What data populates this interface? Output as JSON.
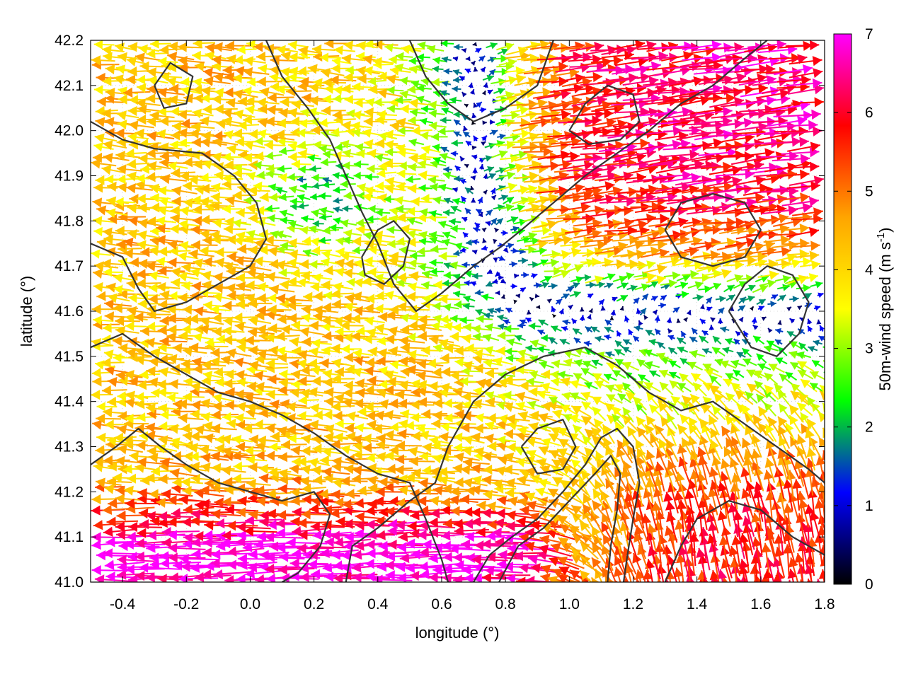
{
  "chart_data": {
    "type": "vector-field",
    "xlabel": "longitude (°)",
    "ylabel": "latitude (°)",
    "xlim": [
      -0.5,
      1.8
    ],
    "ylim": [
      41.0,
      42.2
    ],
    "xticks": [
      {
        "value": -0.4,
        "label": "-0.4"
      },
      {
        "value": -0.2,
        "label": "-0.2"
      },
      {
        "value": 0.0,
        "label": "0.0"
      },
      {
        "value": 0.2,
        "label": "0.2"
      },
      {
        "value": 0.4,
        "label": "0.4"
      },
      {
        "value": 0.6,
        "label": "0.6"
      },
      {
        "value": 0.8,
        "label": "0.8"
      },
      {
        "value": 1.0,
        "label": "1.0"
      },
      {
        "value": 1.2,
        "label": "1.2"
      },
      {
        "value": 1.4,
        "label": "1.4"
      },
      {
        "value": 1.6,
        "label": "1.6"
      },
      {
        "value": 1.8,
        "label": "1.8"
      }
    ],
    "yticks": [
      {
        "value": 41.0,
        "label": "41.0"
      },
      {
        "value": 41.1,
        "label": "41.1"
      },
      {
        "value": 41.2,
        "label": "41.2"
      },
      {
        "value": 41.3,
        "label": "41.3"
      },
      {
        "value": 41.4,
        "label": "41.4"
      },
      {
        "value": 41.5,
        "label": "41.5"
      },
      {
        "value": 41.6,
        "label": "41.6"
      },
      {
        "value": 41.7,
        "label": "41.7"
      },
      {
        "value": 41.8,
        "label": "41.8"
      },
      {
        "value": 41.9,
        "label": "41.9"
      },
      {
        "value": 42.0,
        "label": "42.0"
      },
      {
        "value": 42.1,
        "label": "42.1"
      },
      {
        "value": 42.2,
        "label": "42.2"
      }
    ],
    "grid": true,
    "colorbar": {
      "label_main": "50m-wind speed (m s",
      "label_sup": "-1",
      "label_end": ")",
      "range": [
        0,
        7
      ],
      "ticks": [
        {
          "value": 0,
          "label": "0"
        },
        {
          "value": 1,
          "label": "1"
        },
        {
          "value": 2,
          "label": "2"
        },
        {
          "value": 3,
          "label": "3"
        },
        {
          "value": 4,
          "label": "4"
        },
        {
          "value": 5,
          "label": "5"
        },
        {
          "value": 6,
          "label": "6"
        },
        {
          "value": 7,
          "label": "7"
        }
      ],
      "stops": [
        "#000000",
        "#0000ff",
        "#00ff00",
        "#ffff00",
        "#ffa500",
        "#ff0000",
        "#ff00ff"
      ]
    },
    "contour_color": "#333333",
    "contours": [
      [
        [
          -0.5,
          41.52
        ],
        [
          -0.4,
          41.55
        ],
        [
          -0.3,
          41.5
        ],
        [
          -0.2,
          41.46
        ],
        [
          -0.1,
          41.42
        ],
        [
          0.0,
          41.4
        ],
        [
          0.1,
          41.37
        ],
        [
          0.2,
          41.33
        ],
        [
          0.3,
          41.28
        ],
        [
          0.4,
          41.24
        ],
        [
          0.5,
          41.22
        ],
        [
          0.55,
          41.14
        ],
        [
          0.6,
          41.05
        ],
        [
          0.62,
          41.0
        ]
      ],
      [
        [
          -0.5,
          41.75
        ],
        [
          -0.4,
          41.72
        ],
        [
          -0.35,
          41.65
        ],
        [
          -0.3,
          41.6
        ],
        [
          -0.2,
          41.62
        ],
        [
          -0.1,
          41.66
        ],
        [
          0.0,
          41.7
        ],
        [
          0.05,
          41.76
        ],
        [
          0.02,
          41.84
        ],
        [
          -0.05,
          41.9
        ],
        [
          -0.15,
          41.95
        ],
        [
          -0.3,
          41.96
        ],
        [
          -0.4,
          41.98
        ],
        [
          -0.5,
          42.02
        ]
      ],
      [
        [
          0.05,
          42.2
        ],
        [
          0.1,
          42.12
        ],
        [
          0.18,
          42.05
        ],
        [
          0.25,
          41.98
        ],
        [
          0.3,
          41.9
        ],
        [
          0.35,
          41.82
        ],
        [
          0.4,
          41.75
        ],
        [
          0.45,
          41.66
        ],
        [
          0.52,
          41.6
        ],
        [
          0.6,
          41.64
        ],
        [
          0.7,
          41.7
        ],
        [
          0.78,
          41.74
        ],
        [
          0.85,
          41.78
        ],
        [
          0.95,
          41.84
        ],
        [
          1.05,
          41.9
        ],
        [
          1.15,
          41.95
        ],
        [
          1.25,
          42.0
        ],
        [
          1.35,
          42.06
        ],
        [
          1.45,
          42.1
        ],
        [
          1.55,
          42.16
        ],
        [
          1.62,
          42.2
        ]
      ],
      [
        [
          0.5,
          42.2
        ],
        [
          0.55,
          42.12
        ],
        [
          0.62,
          42.06
        ],
        [
          0.7,
          42.02
        ],
        [
          0.8,
          42.05
        ],
        [
          0.9,
          42.1
        ],
        [
          0.95,
          42.2
        ]
      ],
      [
        [
          0.3,
          41.0
        ],
        [
          0.32,
          41.08
        ],
        [
          0.4,
          41.12
        ],
        [
          0.5,
          41.18
        ],
        [
          0.58,
          41.22
        ],
        [
          0.62,
          41.3
        ],
        [
          0.7,
          41.4
        ],
        [
          0.8,
          41.46
        ],
        [
          0.92,
          41.5
        ],
        [
          1.05,
          41.52
        ],
        [
          1.15,
          41.48
        ],
        [
          1.25,
          41.42
        ],
        [
          1.35,
          41.38
        ],
        [
          1.45,
          41.4
        ],
        [
          1.55,
          41.35
        ],
        [
          1.65,
          41.3
        ],
        [
          1.75,
          41.25
        ],
        [
          1.8,
          41.22
        ]
      ],
      [
        [
          0.7,
          41.0
        ],
        [
          0.75,
          41.06
        ],
        [
          0.82,
          41.1
        ],
        [
          0.9,
          41.14
        ],
        [
          0.98,
          41.2
        ],
        [
          1.05,
          41.26
        ],
        [
          1.1,
          41.32
        ],
        [
          1.15,
          41.34
        ],
        [
          1.2,
          41.3
        ],
        [
          1.22,
          41.22
        ],
        [
          1.2,
          41.14
        ],
        [
          1.18,
          41.05
        ],
        [
          1.17,
          41.0
        ]
      ],
      [
        [
          0.78,
          41.0
        ],
        [
          0.84,
          41.08
        ],
        [
          0.92,
          41.12
        ],
        [
          1.0,
          41.18
        ],
        [
          1.08,
          41.24
        ],
        [
          1.13,
          41.28
        ],
        [
          1.16,
          41.24
        ],
        [
          1.15,
          41.16
        ],
        [
          1.13,
          41.08
        ],
        [
          1.12,
          41.0
        ]
      ],
      [
        [
          -0.5,
          41.26
        ],
        [
          -0.42,
          41.3
        ],
        [
          -0.35,
          41.34
        ],
        [
          -0.28,
          41.3
        ],
        [
          -0.2,
          41.26
        ],
        [
          -0.1,
          41.22
        ],
        [
          0.0,
          41.2
        ],
        [
          0.1,
          41.18
        ],
        [
          0.2,
          41.2
        ],
        [
          0.25,
          41.15
        ],
        [
          0.22,
          41.08
        ],
        [
          0.15,
          41.02
        ],
        [
          0.1,
          41.0
        ]
      ],
      [
        [
          1.3,
          41.0
        ],
        [
          1.35,
          41.08
        ],
        [
          1.4,
          41.14
        ],
        [
          1.5,
          41.18
        ],
        [
          1.6,
          41.16
        ],
        [
          1.7,
          41.1
        ],
        [
          1.8,
          41.06
        ]
      ],
      [
        [
          1.5,
          41.6
        ],
        [
          1.55,
          41.66
        ],
        [
          1.62,
          41.7
        ],
        [
          1.7,
          41.68
        ],
        [
          1.75,
          41.62
        ],
        [
          1.72,
          41.55
        ],
        [
          1.65,
          41.5
        ],
        [
          1.57,
          41.52
        ],
        [
          1.5,
          41.6
        ]
      ],
      [
        [
          0.35,
          41.72
        ],
        [
          0.4,
          41.78
        ],
        [
          0.45,
          41.8
        ],
        [
          0.5,
          41.76
        ],
        [
          0.48,
          41.7
        ],
        [
          0.42,
          41.66
        ],
        [
          0.36,
          41.68
        ],
        [
          0.35,
          41.72
        ]
      ],
      [
        [
          -0.3,
          42.1
        ],
        [
          -0.25,
          42.15
        ],
        [
          -0.18,
          42.12
        ],
        [
          -0.2,
          42.06
        ],
        [
          -0.27,
          42.05
        ],
        [
          -0.3,
          42.1
        ]
      ],
      [
        [
          1.3,
          41.78
        ],
        [
          1.35,
          41.84
        ],
        [
          1.45,
          41.86
        ],
        [
          1.55,
          41.84
        ],
        [
          1.6,
          41.78
        ],
        [
          1.55,
          41.72
        ],
        [
          1.45,
          41.7
        ],
        [
          1.35,
          41.72
        ],
        [
          1.3,
          41.78
        ]
      ],
      [
        [
          0.85,
          41.3
        ],
        [
          0.9,
          41.34
        ],
        [
          0.98,
          41.36
        ],
        [
          1.02,
          41.3
        ],
        [
          0.98,
          41.25
        ],
        [
          0.9,
          41.24
        ],
        [
          0.85,
          41.3
        ]
      ],
      [
        [
          1.0,
          42.0
        ],
        [
          1.05,
          42.06
        ],
        [
          1.12,
          42.1
        ],
        [
          1.2,
          42.08
        ],
        [
          1.22,
          42.02
        ],
        [
          1.16,
          41.98
        ],
        [
          1.06,
          41.97
        ],
        [
          1.0,
          42.0
        ]
      ]
    ]
  }
}
